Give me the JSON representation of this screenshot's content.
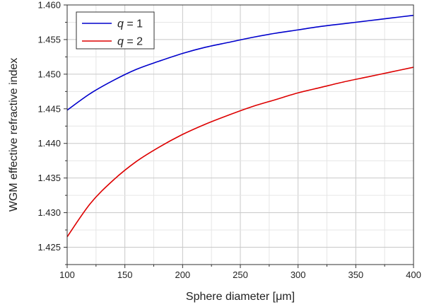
{
  "chart_data": {
    "type": "line",
    "xlabel": "Sphere diameter [μm]",
    "ylabel": "WGM effective refractive index",
    "xlim": [
      100,
      400
    ],
    "ylim": [
      1.4225,
      1.46
    ],
    "x_ticks": [
      "100",
      "150",
      "200",
      "250",
      "300",
      "350",
      "400"
    ],
    "y_ticks": [
      "1.425",
      "1.430",
      "1.435",
      "1.440",
      "1.445",
      "1.450",
      "1.455",
      "1.460"
    ],
    "grid": true,
    "legend_position": "top-left",
    "x": [
      100,
      120,
      140,
      160,
      180,
      200,
      220,
      240,
      260,
      280,
      300,
      320,
      340,
      360,
      380,
      400
    ],
    "series": [
      {
        "name": "q = 1",
        "name_var": "q",
        "name_rest": " = 1",
        "color": "#0000cc",
        "values": [
          1.4448,
          1.4472,
          1.4491,
          1.4507,
          1.4519,
          1.453,
          1.4539,
          1.4546,
          1.4553,
          1.4559,
          1.4564,
          1.4569,
          1.4573,
          1.4577,
          1.4581,
          1.4585
        ]
      },
      {
        "name": "q = 2",
        "name_var": "q",
        "name_rest": " = 2",
        "color": "#dd0000",
        "values": [
          1.4265,
          1.4313,
          1.4347,
          1.4374,
          1.4395,
          1.4413,
          1.4428,
          1.4441,
          1.4453,
          1.4463,
          1.4473,
          1.4481,
          1.4489,
          1.4496,
          1.4503,
          1.451
        ]
      }
    ]
  }
}
